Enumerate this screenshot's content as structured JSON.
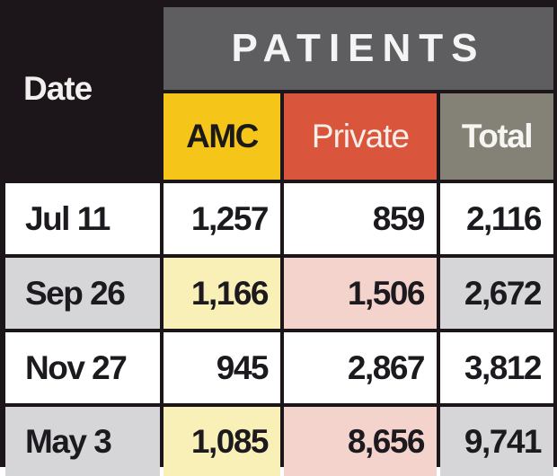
{
  "chart_data": {
    "type": "table",
    "header": {
      "date": "Date",
      "group": "PATIENTS",
      "amc": "AMC",
      "private": "Private",
      "total": "Total"
    },
    "columns": [
      "Date",
      "AMC",
      "Private",
      "Total"
    ],
    "rows": [
      {
        "date": "Jul 11",
        "amc": "1,257",
        "private": "859",
        "total": "2,116"
      },
      {
        "date": "Sep 26",
        "amc": "1,166",
        "private": "1,506",
        "total": "2,672"
      },
      {
        "date": "Nov 27",
        "amc": "945",
        "private": "2,867",
        "total": "3,812"
      },
      {
        "date": "May 3",
        "amc": "1,085",
        "private": "8,656",
        "total": "9,741"
      }
    ]
  },
  "colors": {
    "frame": "#1c1519",
    "patients_header": "#5e5d5f",
    "amc_header": "#f6c51a",
    "private_header": "#d9563c",
    "total_header": "#848277",
    "amc_tint": "#f9f0b8",
    "private_tint": "#f3d3cc",
    "gray_row": "#d6d5d8"
  }
}
